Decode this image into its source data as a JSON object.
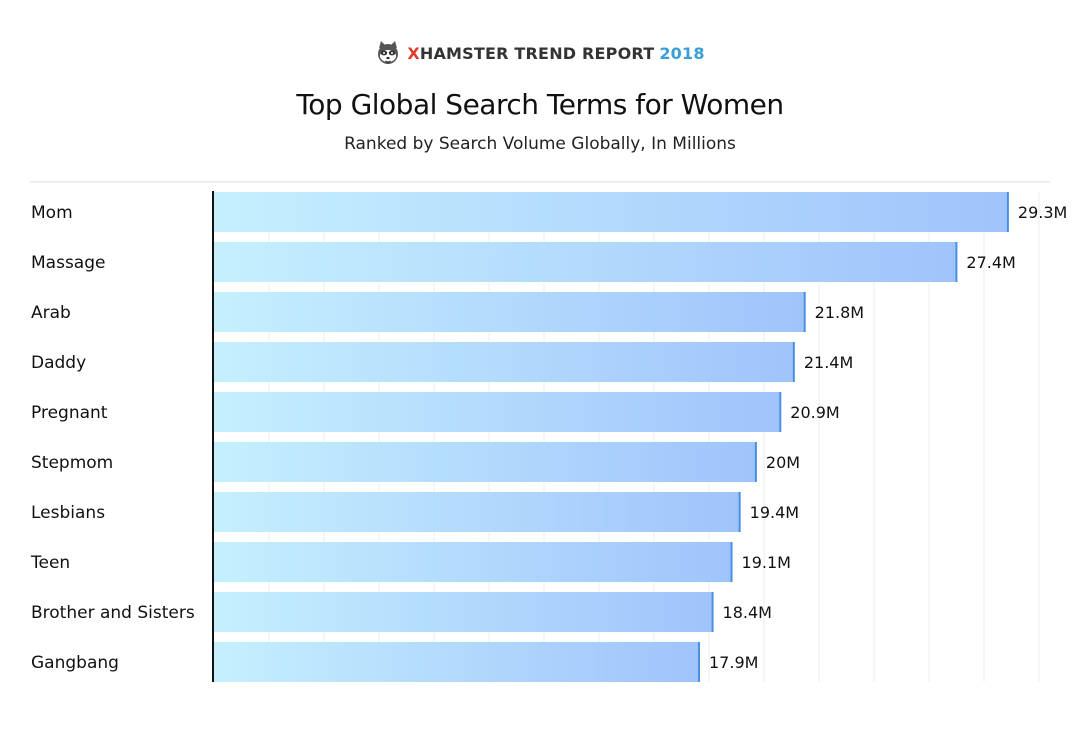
{
  "brand": {
    "logo_icon": "raccoon-mascot-icon",
    "x_letter": "X",
    "name": "HAMSTER TREND REPORT",
    "year": "2018"
  },
  "chart_data": {
    "type": "bar",
    "orientation": "horizontal",
    "title": "Top Global Search Terms for Women",
    "subtitle": "Ranked by Search Volume Globally, In Millions",
    "categories": [
      "Mom",
      "Massage",
      "Arab",
      "Daddy",
      "Pregnant",
      "Stepmom",
      "Lesbians",
      "Teen",
      "Brother and Sisters",
      "Gangbang"
    ],
    "values": [
      29.3,
      27.4,
      21.8,
      21.4,
      20.9,
      20,
      19.4,
      19.1,
      18.4,
      17.9
    ],
    "value_labels": [
      "29.3M",
      "27.4M",
      "21.8M",
      "21.4M",
      "20.9M",
      "20M",
      "19.4M",
      "19.1M",
      "18.4M",
      "17.9M"
    ],
    "xlim": [
      0,
      30.3
    ],
    "grid": true,
    "colors": {
      "bar_start": "#c4f0fe",
      "bar_end": "#9fc4fb",
      "bar_edge": "#4a90e2",
      "grid": "#ececec",
      "axis": "#111111",
      "divider": "#dddddd"
    }
  }
}
